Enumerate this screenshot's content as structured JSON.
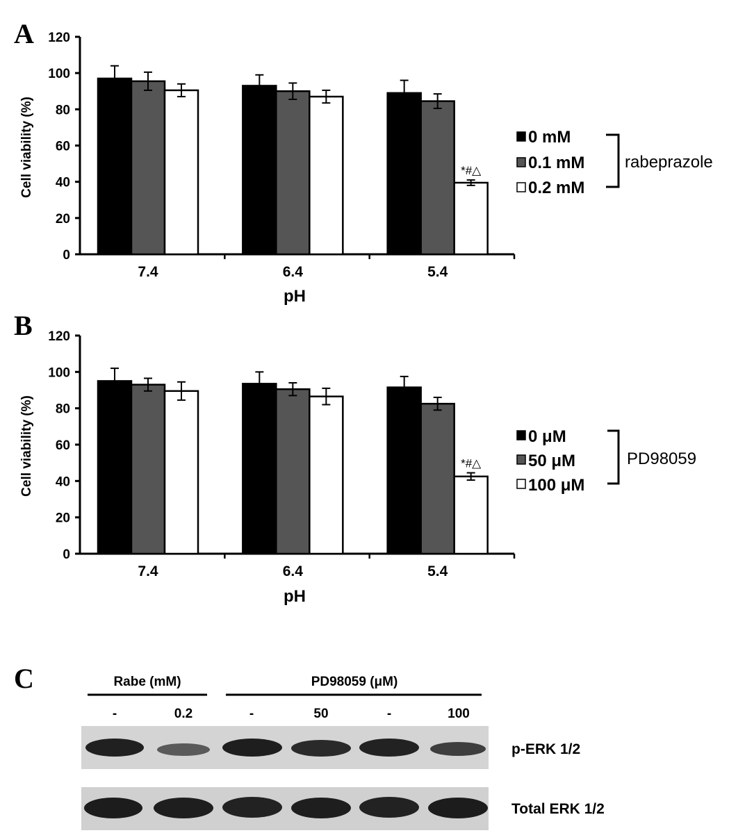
{
  "chart_data": [
    {
      "type": "bar",
      "panel": "A",
      "categories": [
        "7.4",
        "6.4",
        "5.4"
      ],
      "series": [
        {
          "name": "0 mM",
          "values": [
            97,
            93,
            89
          ],
          "errors": [
            7,
            6,
            7
          ],
          "color": "#000000"
        },
        {
          "name": "0.1 mM",
          "values": [
            95.5,
            90,
            84.5
          ],
          "errors": [
            5,
            4.5,
            4
          ],
          "color": "#555555"
        },
        {
          "name": "0.2 mM",
          "values": [
            90.5,
            87,
            39.5
          ],
          "errors": [
            3.5,
            3.5,
            1.5
          ],
          "color": "#ffffff"
        }
      ],
      "xlabel": "pH",
      "ylabel": "Cell viability (%)",
      "ylim": [
        0,
        120
      ],
      "yticks": [
        "0",
        "20",
        "40",
        "60",
        "80",
        "100",
        "120"
      ],
      "legend_group": "rabeprazole",
      "annotation": "*#△"
    },
    {
      "type": "bar",
      "panel": "B",
      "categories": [
        "7.4",
        "6.4",
        "5.4"
      ],
      "series": [
        {
          "name": "0 μM",
          "values": [
            95,
            93.5,
            91.5
          ],
          "errors": [
            7,
            6.5,
            6
          ],
          "color": "#000000"
        },
        {
          "name": "50 μM",
          "values": [
            93,
            90.5,
            82.5
          ],
          "errors": [
            3.5,
            3.5,
            3.5
          ],
          "color": "#555555"
        },
        {
          "name": "100 μM",
          "values": [
            89.5,
            86.5,
            42.5
          ],
          "errors": [
            5,
            4.5,
            2
          ],
          "color": "#ffffff"
        }
      ],
      "xlabel": "pH",
      "ylabel": "Cell viability (%)",
      "ylim": [
        0,
        120
      ],
      "yticks": [
        "0",
        "20",
        "40",
        "60",
        "80",
        "100",
        "120"
      ],
      "legend_group": "PD98059",
      "annotation": "*#△"
    }
  ],
  "panels": {
    "a": "A",
    "b": "B",
    "c": "C"
  },
  "blot": {
    "headers": [
      "Rabe (mM)",
      "PD98059 (μM)"
    ],
    "lanes": [
      "-",
      "0.2",
      "-",
      "50",
      "-",
      "100"
    ],
    "rows": [
      "p-ERK 1/2",
      "Total ERK 1/2"
    ]
  }
}
